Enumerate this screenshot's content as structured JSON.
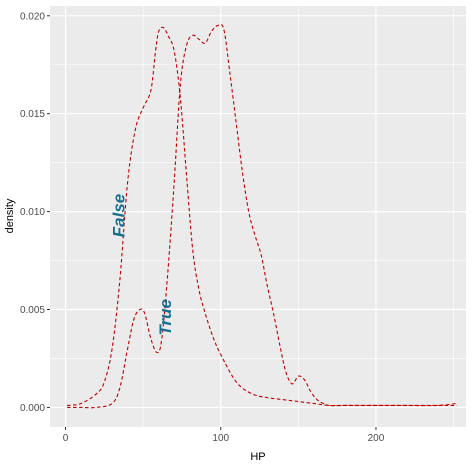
{
  "chart_data": {
    "type": "line",
    "xlabel": "HP",
    "ylabel": "density",
    "xlim": [
      -10,
      258
    ],
    "ylim": [
      -0.001,
      0.0205
    ],
    "x_ticks": [
      0,
      100,
      200
    ],
    "x_tick_labels": [
      "0",
      "100",
      "200"
    ],
    "y_ticks": [
      0,
      0.005,
      0.01,
      0.015,
      0.02
    ],
    "y_tick_labels": [
      "0.000",
      "0.005",
      "0.010",
      "0.015",
      "0.020"
    ],
    "grid": true,
    "line_style": "dashed",
    "colors": {
      "panel": "#EBEBEB",
      "grid": "#FFFFFF",
      "line": "#C00000",
      "label": "#1A6E8E"
    },
    "series": [
      {
        "name": "False",
        "label_x": 38,
        "label_y": 0.0098,
        "label_angle": 90,
        "x": [
          1,
          10,
          20,
          25,
          30,
          35,
          40,
          45,
          50,
          55,
          58,
          60,
          63,
          66,
          70,
          74,
          78,
          82,
          86,
          90,
          95,
          100,
          110,
          120,
          130,
          140,
          150,
          160,
          170,
          180,
          190,
          200,
          210,
          220,
          230,
          240,
          252
        ],
        "y": [
          0.0001,
          0.0002,
          0.0007,
          0.0013,
          0.003,
          0.0065,
          0.0115,
          0.0142,
          0.0153,
          0.0162,
          0.0182,
          0.0192,
          0.0194,
          0.019,
          0.0182,
          0.0158,
          0.0118,
          0.008,
          0.006,
          0.0048,
          0.0036,
          0.0027,
          0.0013,
          0.0007,
          0.0005,
          0.0004,
          0.0003,
          0.0002,
          0.0001,
          0.0001,
          0.0001,
          0.0001,
          0.0001,
          0.0001,
          0.0001,
          0.0001,
          0.0001
        ]
      },
      {
        "name": "True",
        "label_x": 68,
        "label_y": 0.0046,
        "label_angle": 90,
        "x": [
          1,
          10,
          20,
          30,
          35,
          40,
          44,
          48,
          51,
          55,
          59,
          62,
          66,
          70,
          74,
          78,
          82,
          86,
          90,
          94,
          98,
          102,
          106,
          110,
          114,
          118,
          122,
          126,
          130,
          134,
          138,
          142,
          146,
          150,
          154,
          158,
          162,
          166,
          170,
          180,
          200,
          220,
          240,
          252
        ],
        "y": [
          0,
          0,
          0,
          0.0002,
          0.001,
          0.003,
          0.0045,
          0.005,
          0.0048,
          0.0035,
          0.0028,
          0.0035,
          0.007,
          0.0115,
          0.0165,
          0.0185,
          0.019,
          0.0188,
          0.0186,
          0.0192,
          0.0195,
          0.0193,
          0.017,
          0.0145,
          0.012,
          0.01,
          0.0088,
          0.0078,
          0.0062,
          0.0048,
          0.0032,
          0.0018,
          0.0012,
          0.0016,
          0.0014,
          0.0008,
          0.0004,
          0.0002,
          0.0001,
          0.0001,
          0.0001,
          0.0001,
          0.0001,
          0.0002
        ]
      }
    ]
  }
}
